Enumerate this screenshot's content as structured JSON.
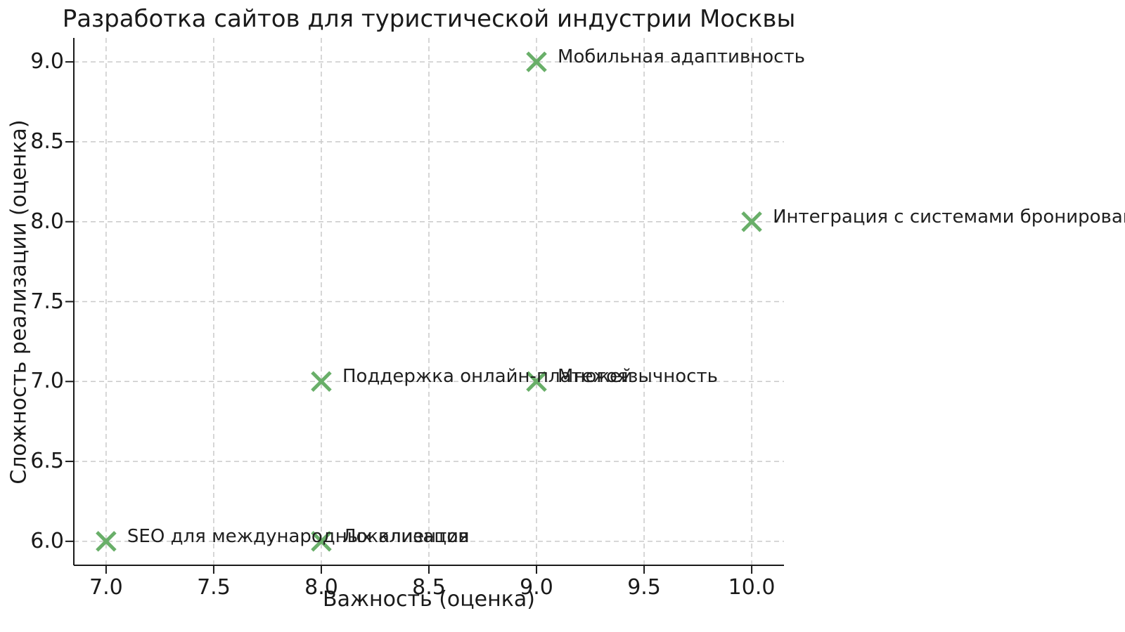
{
  "chart_data": {
    "type": "scatter",
    "title": "Разработка сайтов для туристической индустрии Москвы",
    "xlabel": "Важность (оценка)",
    "ylabel": "Сложность реализации (оценка)",
    "xlim": [
      6.85,
      10.15
    ],
    "ylim": [
      5.85,
      9.15
    ],
    "xticks": [
      7.0,
      7.5,
      8.0,
      8.5,
      9.0,
      9.5,
      10.0
    ],
    "yticks": [
      6.0,
      6.5,
      7.0,
      7.5,
      8.0,
      8.5,
      9.0
    ],
    "grid": true,
    "grid_style": "dashed",
    "legend": "none",
    "marker": "x",
    "colors": {
      "marker": "#69af69",
      "gridline": "#c9c9c9",
      "axis": "#1a1a1a",
      "text": "#1a1a1a"
    },
    "points": [
      {
        "label": "Мобильная адаптивность",
        "x": 9,
        "y": 9
      },
      {
        "label": "Интеграция с системами бронирования",
        "x": 10,
        "y": 8
      },
      {
        "label": "Поддержка онлайн-платежей",
        "x": 8,
        "y": 7
      },
      {
        "label": "Многоязычность",
        "x": 9,
        "y": 7
      },
      {
        "label": "SEO для международных клиентов",
        "x": 7,
        "y": 6
      },
      {
        "label": "Локализация",
        "x": 8,
        "y": 6
      }
    ]
  }
}
